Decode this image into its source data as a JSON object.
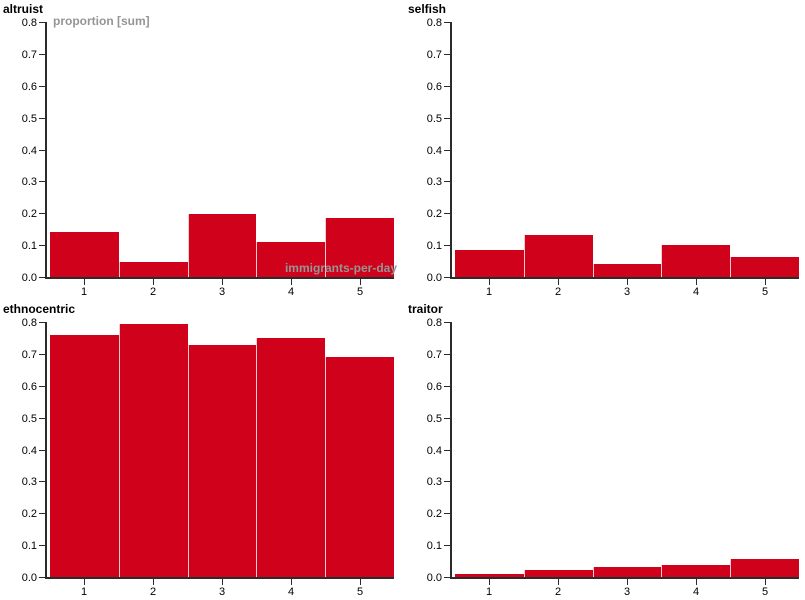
{
  "colors": {
    "bar_fill": "#d0021b",
    "bar_separator": "rgba(255,255,255,0.8)",
    "axis": "#2b2b2b",
    "tick_label": "#000000",
    "title": "#000000",
    "field_label": "#959595",
    "background": "#ffffff"
  },
  "chart_data": [
    {
      "type": "bar",
      "position": "top-left",
      "title": "altruist",
      "ylabel": "proportion [sum]",
      "xlabel": "immigrants-per-day",
      "categories": [
        "1",
        "2",
        "3",
        "4",
        "5"
      ],
      "values": [
        0.14,
        0.046,
        0.197,
        0.109,
        0.186
      ],
      "ylim": [
        0,
        0.8
      ],
      "yticks": [
        "0.0",
        "0.1",
        "0.2",
        "0.3",
        "0.4",
        "0.5",
        "0.6",
        "0.7",
        "0.8"
      ],
      "grid": false,
      "legend": null
    },
    {
      "type": "bar",
      "position": "top-right",
      "title": "selfish",
      "ylabel": "",
      "xlabel": "",
      "categories": [
        "1",
        "2",
        "3",
        "4",
        "5"
      ],
      "values": [
        0.086,
        0.133,
        0.04,
        0.099,
        0.064
      ],
      "ylim": [
        0,
        0.8
      ],
      "yticks": [
        "0.0",
        "0.1",
        "0.2",
        "0.3",
        "0.4",
        "0.5",
        "0.6",
        "0.7",
        "0.8"
      ],
      "grid": false,
      "legend": null
    },
    {
      "type": "bar",
      "position": "bottom-left",
      "title": "ethnocentric",
      "ylabel": "",
      "xlabel": "",
      "categories": [
        "1",
        "2",
        "3",
        "4",
        "5"
      ],
      "values": [
        0.76,
        0.795,
        0.727,
        0.75,
        0.69
      ],
      "ylim": [
        0,
        0.8
      ],
      "yticks": [
        "0.0",
        "0.1",
        "0.2",
        "0.3",
        "0.4",
        "0.5",
        "0.6",
        "0.7",
        "0.8"
      ],
      "grid": false,
      "legend": null
    },
    {
      "type": "bar",
      "position": "bottom-right",
      "title": "traitor",
      "ylabel": "",
      "xlabel": "",
      "categories": [
        "1",
        "2",
        "3",
        "4",
        "5"
      ],
      "values": [
        0.01,
        0.021,
        0.031,
        0.037,
        0.057
      ],
      "ylim": [
        0,
        0.8
      ],
      "yticks": [
        "0.0",
        "0.1",
        "0.2",
        "0.3",
        "0.4",
        "0.5",
        "0.6",
        "0.7",
        "0.8"
      ],
      "grid": false,
      "legend": null
    }
  ]
}
